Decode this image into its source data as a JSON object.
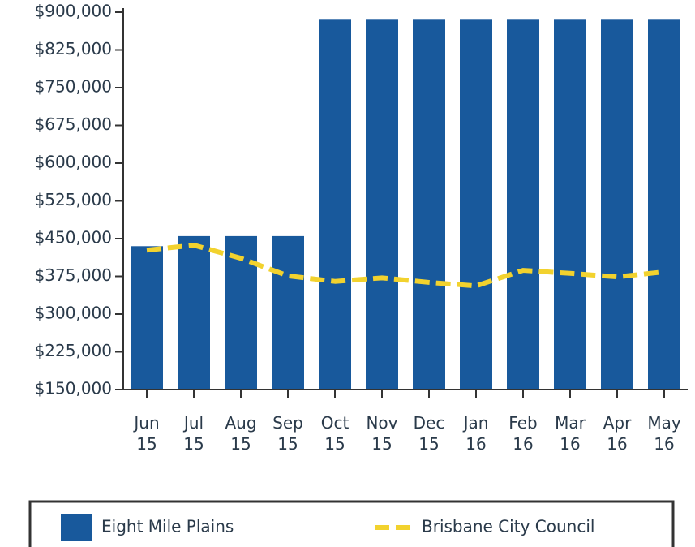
{
  "chart_data": {
    "type": "bar",
    "categories": [
      "Jun 15",
      "Jul 15",
      "Aug 15",
      "Sep 15",
      "Oct 15",
      "Nov 15",
      "Dec 15",
      "Jan 16",
      "Feb 16",
      "Mar 16",
      "Apr 16",
      "May 16"
    ],
    "series": [
      {
        "name": "Eight Mile Plains",
        "type": "bar",
        "color": "#18599c",
        "values": [
          435000,
          455000,
          455000,
          455000,
          885000,
          885000,
          885000,
          885000,
          885000,
          885000,
          885000,
          885000
        ]
      },
      {
        "name": "Brisbane City Council",
        "type": "line",
        "color": "#f2d22e",
        "values": [
          427000,
          437000,
          411000,
          376000,
          365000,
          372000,
          363000,
          356000,
          387000,
          381000,
          374000,
          384000
        ]
      }
    ],
    "ylim": [
      150000,
      900000
    ],
    "yticks": [
      {
        "value": 150000,
        "label": "$150,000"
      },
      {
        "value": 225000,
        "label": "$225,000"
      },
      {
        "value": 300000,
        "label": "$300,000"
      },
      {
        "value": 375000,
        "label": "$375,000"
      },
      {
        "value": 450000,
        "label": "$450,000"
      },
      {
        "value": 525000,
        "label": "$525,000"
      },
      {
        "value": 600000,
        "label": "$600,000"
      },
      {
        "value": 675000,
        "label": "$675,000"
      },
      {
        "value": 750000,
        "label": "$750,000"
      },
      {
        "value": 825000,
        "label": "$825,000"
      },
      {
        "value": 900000,
        "label": "$900,000"
      }
    ],
    "legend": "bottom"
  }
}
